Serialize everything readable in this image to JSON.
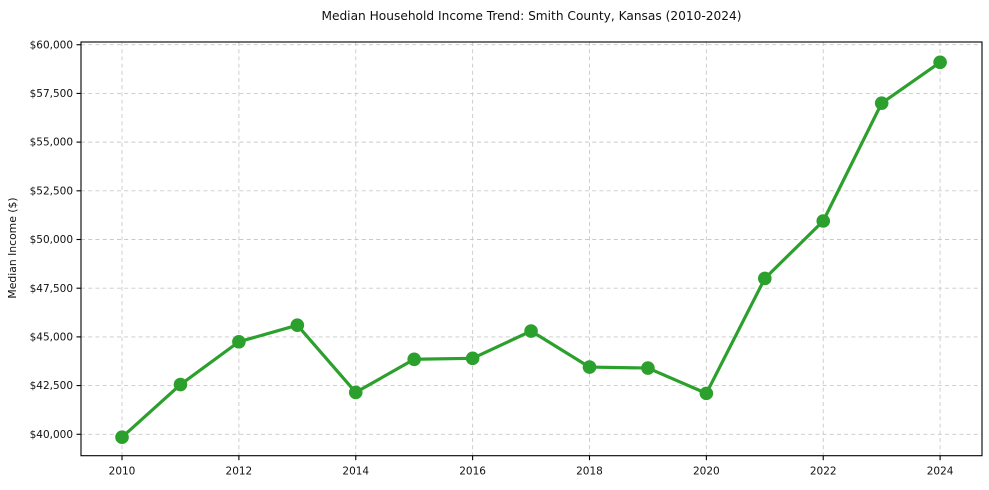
{
  "chart_data": {
    "type": "line",
    "title": "Median Household Income Trend: Smith County, Kansas (2010-2024)",
    "xlabel": "",
    "ylabel": "Median Income ($)",
    "series": [
      {
        "name": "Median Household Income",
        "x": [
          2010,
          2011,
          2012,
          2013,
          2014,
          2015,
          2016,
          2017,
          2018,
          2019,
          2020,
          2021,
          2022,
          2023,
          2024
        ],
        "values": [
          39850,
          42550,
          44750,
          45600,
          42150,
          43850,
          43900,
          45300,
          43450,
          43400,
          42100,
          48000,
          50950,
          57000,
          59100
        ]
      }
    ],
    "xlim": [
      2009.298,
      2024.717
    ],
    "ylim": [
      38900,
      60140
    ],
    "xticks": [
      2010,
      2012,
      2014,
      2016,
      2018,
      2020,
      2022,
      2024
    ],
    "yticks": [
      40000,
      42500,
      45000,
      47500,
      50000,
      52500,
      55000,
      57500,
      60000
    ],
    "ytick_labels": [
      "$40,000",
      "$42,500",
      "$45,000",
      "$47,500",
      "$50,000",
      "$52,500",
      "$55,000",
      "$57,500",
      "$60,000"
    ],
    "grid": true,
    "grid_style": "dashed",
    "legend": false,
    "colors": {
      "line": "#2ca02c",
      "marker": "#2ca02c",
      "grid": "#c9c9c9",
      "frame": "#000000",
      "text": "#111111",
      "background": "#ffffff"
    },
    "marker": "o",
    "marker_radius": 6.8,
    "line_width": 3.2
  }
}
